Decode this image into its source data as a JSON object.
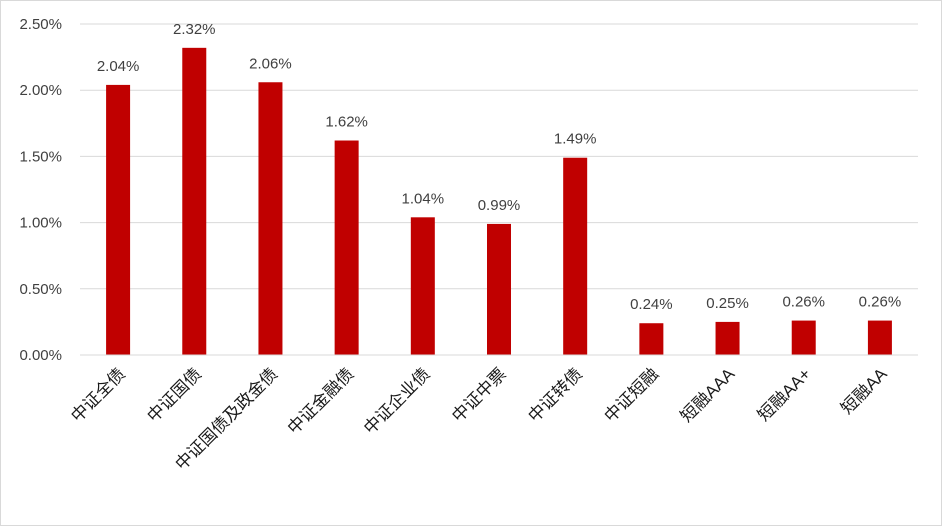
{
  "chart_data": {
    "type": "bar",
    "title": "",
    "xlabel": "",
    "ylabel": "",
    "categories": [
      "中证全债",
      "中证国债",
      "中证国债及政金债",
      "中证金融债",
      "中证企业债",
      "中证中票",
      "中证转债",
      "中证短融",
      "短融AAA",
      "短融AA+",
      "短融AA"
    ],
    "values": [
      2.04,
      2.32,
      2.06,
      1.62,
      1.04,
      0.99,
      1.49,
      0.24,
      0.25,
      0.26,
      0.26
    ],
    "data_labels": [
      "2.04%",
      "2.32%",
      "2.06%",
      "1.62%",
      "1.04%",
      "0.99%",
      "1.49%",
      "0.24%",
      "0.25%",
      "0.26%",
      "0.26%"
    ],
    "ylim": [
      0,
      2.5
    ],
    "yticks": [
      0,
      0.5,
      1.0,
      1.5,
      2.0,
      2.5
    ],
    "ytick_labels": [
      "0.00%",
      "0.50%",
      "1.00%",
      "1.50%",
      "2.00%",
      "2.50%"
    ],
    "grid": true,
    "legend": "none",
    "colors": {
      "bar": "#c00000",
      "grid": "#d9d9d9",
      "axis": "#d9d9d9"
    }
  }
}
